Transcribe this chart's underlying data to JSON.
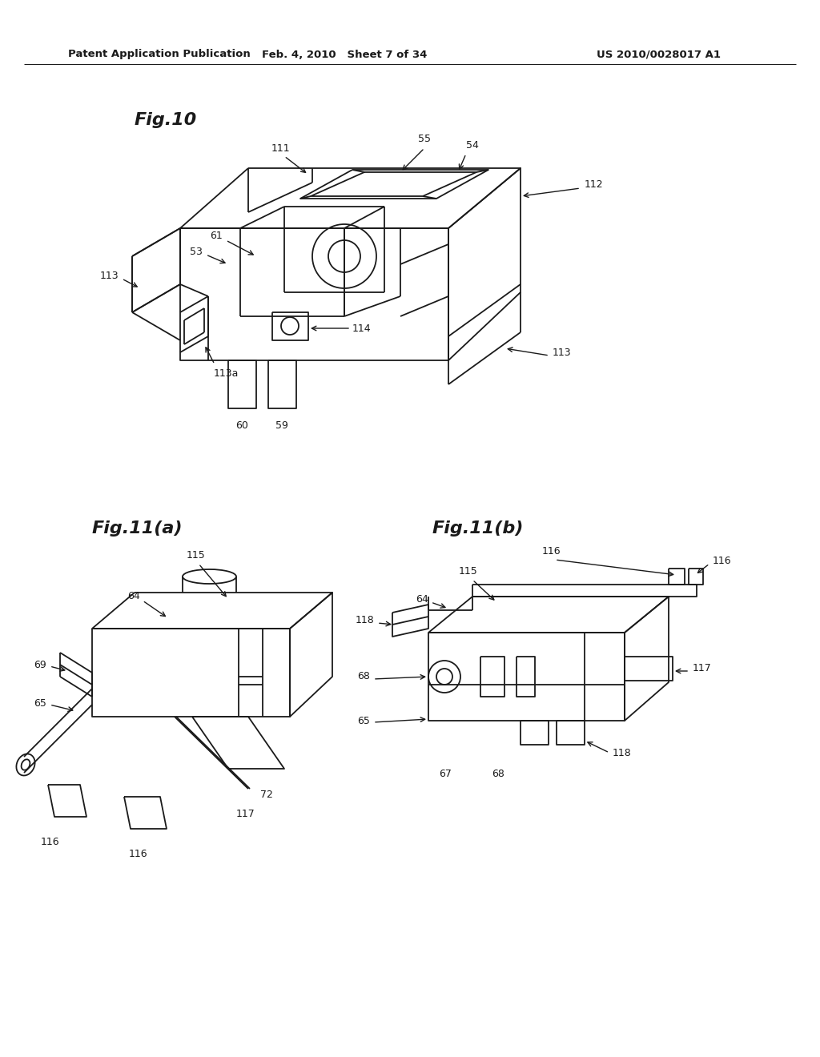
{
  "bg_color": "#ffffff",
  "line_color": "#1a1a1a",
  "text_color": "#1a1a1a",
  "header_left": "Patent Application Publication",
  "header_mid": "Feb. 4, 2010   Sheet 7 of 34",
  "header_right": "US 2010/0028017 A1",
  "fig10_title": "Fig.10",
  "fig11a_title": "Fig.11(a)",
  "fig11b_title": "Fig.11(b)"
}
